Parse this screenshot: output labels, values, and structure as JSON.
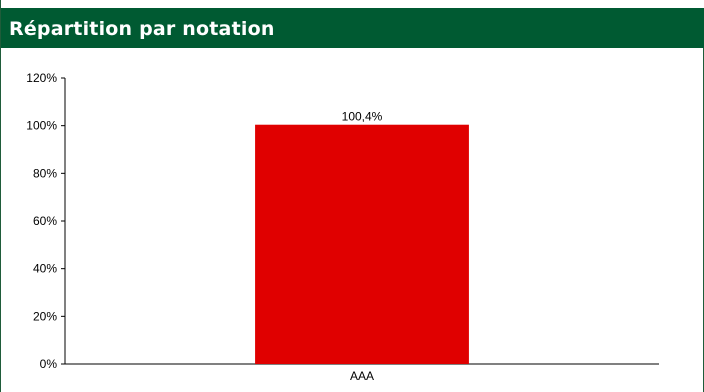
{
  "header": {
    "title": "Répartition par notation"
  },
  "colors": {
    "header_bg": "#005a32",
    "bar": "#e00000",
    "axis": "#000000"
  },
  "chart_data": {
    "type": "bar",
    "title": "Répartition par notation",
    "categories": [
      "AAA"
    ],
    "values": [
      100.4
    ],
    "data_labels": [
      "100,4%"
    ],
    "ylim": [
      0,
      120
    ],
    "yticks": [
      0,
      20,
      40,
      60,
      80,
      100,
      120
    ],
    "ytick_labels": [
      "0%",
      "20%",
      "40%",
      "60%",
      "80%",
      "100%",
      "120%"
    ],
    "xlabel": "",
    "ylabel": "",
    "grid": false,
    "legend": "none"
  }
}
